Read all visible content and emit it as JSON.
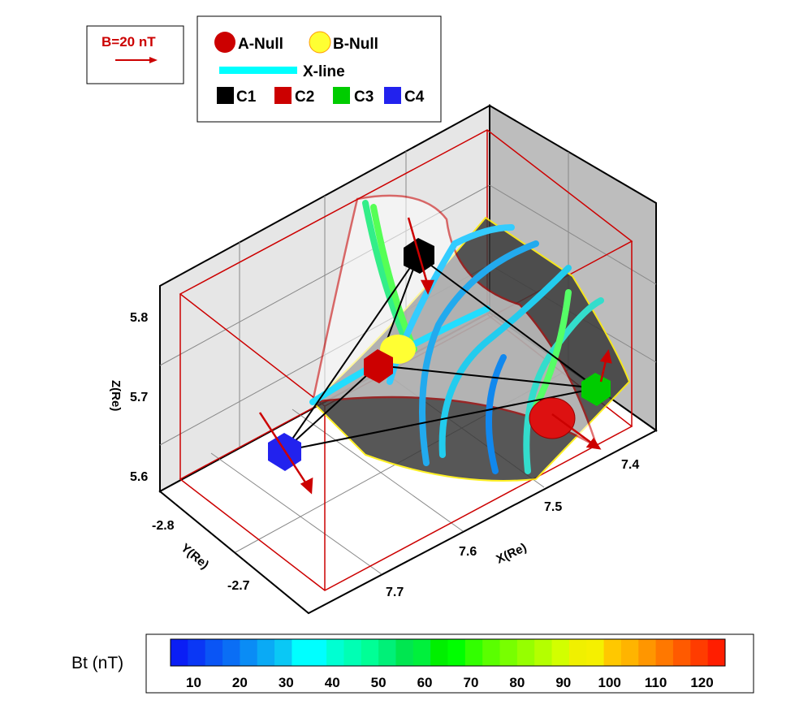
{
  "scale_legend": {
    "label": "B=20 nT",
    "color": "#cc0000"
  },
  "legend": {
    "a_null": "A-Null",
    "b_null": "B-Null",
    "x_line": "X-line",
    "c1": "C1",
    "c2": "C2",
    "c3": "C3",
    "c4": "C4",
    "colors": {
      "a_null": "#cc0000",
      "b_null": "#ffff33",
      "x_line": "#00ffff",
      "c1": "#000000",
      "c2": "#cc0000",
      "c3": "#00cc00",
      "c4": "#2222ee"
    }
  },
  "chart_data": {
    "type": "3d-streamtube",
    "axes": {
      "x": {
        "label": "X(Re)",
        "ticks": [
          "7.4",
          "7.5",
          "7.6",
          "7.7"
        ]
      },
      "y": {
        "label": "Y(Re)",
        "ticks": [
          "-2.8",
          "-2.7"
        ]
      },
      "z": {
        "label": "Z(Re)",
        "ticks": [
          "5.8",
          "5.7",
          "5.6"
        ]
      }
    },
    "colorbar": {
      "label": "Bt (nT)",
      "range": [
        5,
        125
      ],
      "ticks": [
        "10",
        "20",
        "30",
        "40",
        "50",
        "60",
        "70",
        "80",
        "90",
        "100",
        "110",
        "120"
      ],
      "colors": [
        "#0a1ef5",
        "#0a37f5",
        "#0a55f5",
        "#0a6ef5",
        "#0a8cf5",
        "#0aaaf5",
        "#0ac8f5",
        "#00ffff",
        "#00ffff",
        "#00ffd2",
        "#00ffb4",
        "#00ff96",
        "#00f078",
        "#00e650",
        "#00f03c",
        "#00f000",
        "#00ff00",
        "#32ff00",
        "#5aff00",
        "#78ff00",
        "#96ff00",
        "#b4ff00",
        "#d2ff00",
        "#f0f000",
        "#f5f000",
        "#ffc800",
        "#ffb400",
        "#ff9600",
        "#ff7800",
        "#ff5a00",
        "#ff3c00",
        "#ff1e00"
      ]
    }
  }
}
